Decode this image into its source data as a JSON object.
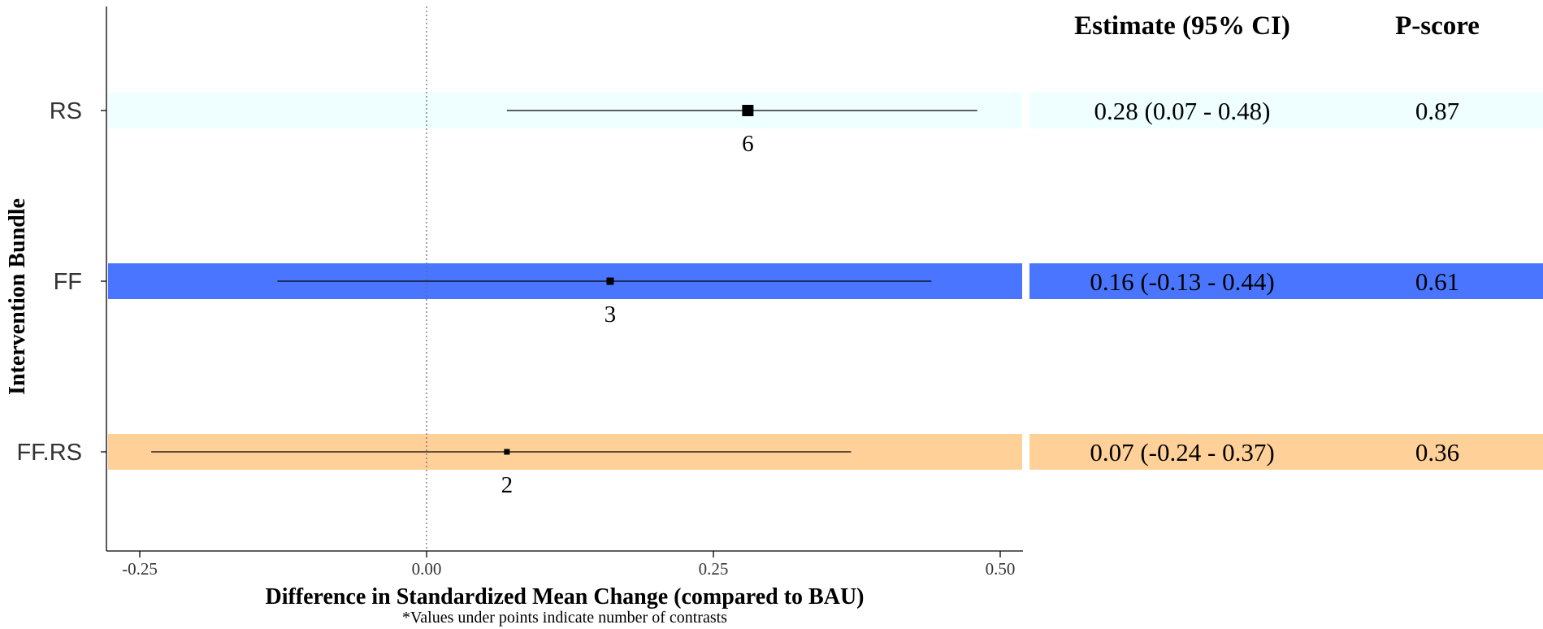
{
  "chart_data": {
    "type": "forest",
    "ylabel": "Intervention Bundle",
    "xlabel": "Difference in Standardized Mean Change (compared to BAU)",
    "footnote": "*Values under points indicate number of contrasts",
    "xlim": [
      -0.28,
      0.52
    ],
    "x_ticks": [
      -0.25,
      0.0,
      0.25,
      0.5
    ],
    "x_tick_labels": [
      "-0.25",
      "0.00",
      "0.25",
      "0.50"
    ],
    "reference_line": 0,
    "grid": false,
    "table_headers": {
      "estimate": "Estimate (95% CI)",
      "pscore": "P-score"
    },
    "rows": [
      {
        "label": "RS",
        "estimate": 0.28,
        "lower": 0.07,
        "upper": 0.48,
        "n_contrasts": "6",
        "estimate_text": "0.28 (0.07 - 0.48)",
        "pscore_text": "0.87",
        "band_color": "#EFFFFF"
      },
      {
        "label": "FF",
        "estimate": 0.16,
        "lower": -0.13,
        "upper": 0.44,
        "n_contrasts": "3",
        "estimate_text": "0.16 (-0.13 - 0.44)",
        "pscore_text": "0.61",
        "band_color": "#4A76FF"
      },
      {
        "label": "FF.RS",
        "estimate": 0.07,
        "lower": -0.24,
        "upper": 0.37,
        "n_contrasts": "2",
        "estimate_text": "0.07 (-0.24 - 0.37)",
        "pscore_text": "0.36",
        "band_color": "#FFD198"
      }
    ]
  }
}
